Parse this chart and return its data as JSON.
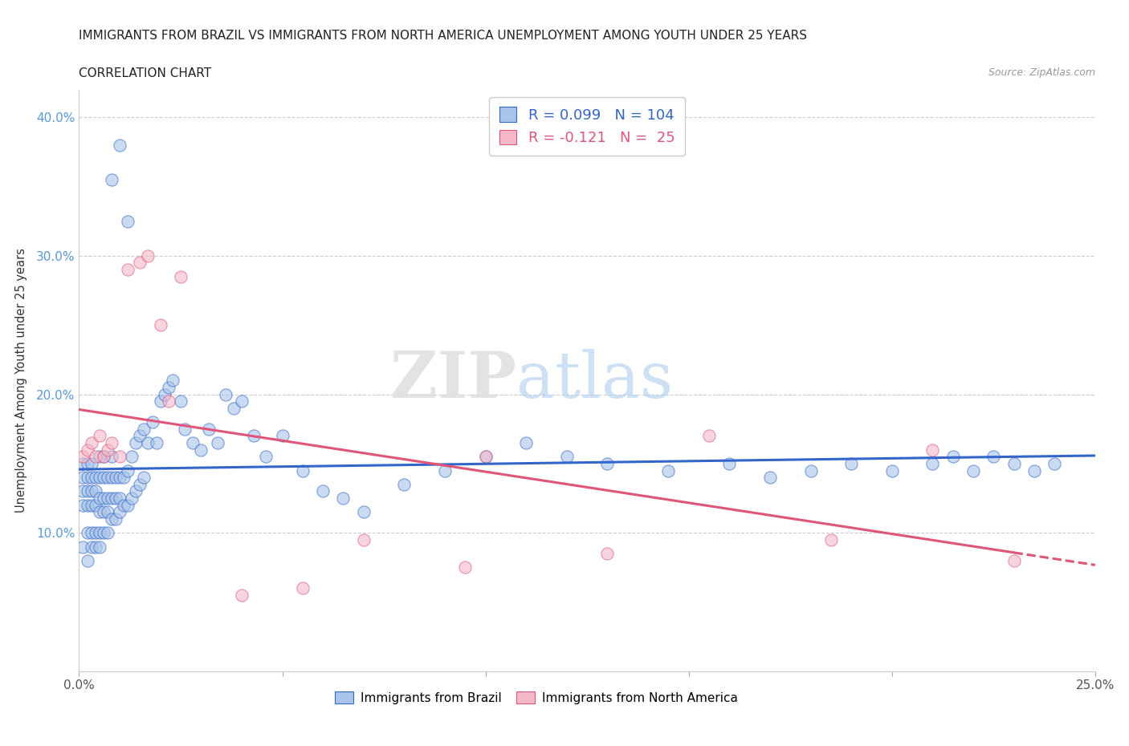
{
  "title_line1": "IMMIGRANTS FROM BRAZIL VS IMMIGRANTS FROM NORTH AMERICA UNEMPLOYMENT AMONG YOUTH UNDER 25 YEARS",
  "title_line2": "CORRELATION CHART",
  "source_text": "Source: ZipAtlas.com",
  "ylabel": "Unemployment Among Youth under 25 years",
  "xlim": [
    0.0,
    0.25
  ],
  "ylim": [
    0.0,
    0.42
  ],
  "brazil_color": "#a8c4e8",
  "na_color": "#f4b8c8",
  "brazil_line_color": "#3366cc",
  "na_line_color": "#e05578",
  "legend_brazil_R": "R = 0.099",
  "legend_brazil_N": "N = 104",
  "legend_na_R": "R = -0.121",
  "legend_na_N": "N =  25",
  "watermark_zip": "ZIP",
  "watermark_atlas": "atlas",
  "brazil_x": [
    0.001,
    0.001,
    0.001,
    0.001,
    0.001,
    0.002,
    0.002,
    0.002,
    0.002,
    0.002,
    0.002,
    0.003,
    0.003,
    0.003,
    0.003,
    0.003,
    0.003,
    0.004,
    0.004,
    0.004,
    0.004,
    0.004,
    0.005,
    0.005,
    0.005,
    0.005,
    0.005,
    0.005,
    0.006,
    0.006,
    0.006,
    0.006,
    0.006,
    0.007,
    0.007,
    0.007,
    0.007,
    0.008,
    0.008,
    0.008,
    0.008,
    0.009,
    0.009,
    0.009,
    0.01,
    0.01,
    0.01,
    0.011,
    0.011,
    0.012,
    0.012,
    0.013,
    0.013,
    0.014,
    0.014,
    0.015,
    0.015,
    0.016,
    0.016,
    0.017,
    0.018,
    0.019,
    0.02,
    0.021,
    0.022,
    0.023,
    0.025,
    0.026,
    0.028,
    0.03,
    0.032,
    0.034,
    0.036,
    0.038,
    0.04,
    0.043,
    0.046,
    0.05,
    0.055,
    0.06,
    0.065,
    0.07,
    0.08,
    0.09,
    0.1,
    0.11,
    0.12,
    0.13,
    0.145,
    0.16,
    0.17,
    0.18,
    0.19,
    0.2,
    0.21,
    0.215,
    0.22,
    0.225,
    0.23,
    0.235,
    0.24,
    0.01,
    0.008,
    0.012
  ],
  "brazil_y": [
    0.12,
    0.13,
    0.14,
    0.15,
    0.09,
    0.08,
    0.1,
    0.12,
    0.13,
    0.14,
    0.15,
    0.09,
    0.1,
    0.12,
    0.13,
    0.14,
    0.15,
    0.09,
    0.1,
    0.12,
    0.13,
    0.14,
    0.09,
    0.1,
    0.115,
    0.125,
    0.14,
    0.155,
    0.1,
    0.115,
    0.125,
    0.14,
    0.155,
    0.1,
    0.115,
    0.125,
    0.14,
    0.11,
    0.125,
    0.14,
    0.155,
    0.11,
    0.125,
    0.14,
    0.115,
    0.125,
    0.14,
    0.12,
    0.14,
    0.12,
    0.145,
    0.125,
    0.155,
    0.13,
    0.165,
    0.135,
    0.17,
    0.14,
    0.175,
    0.165,
    0.18,
    0.165,
    0.195,
    0.2,
    0.205,
    0.21,
    0.195,
    0.175,
    0.165,
    0.16,
    0.175,
    0.165,
    0.2,
    0.19,
    0.195,
    0.17,
    0.155,
    0.17,
    0.145,
    0.13,
    0.125,
    0.115,
    0.135,
    0.145,
    0.155,
    0.165,
    0.155,
    0.15,
    0.145,
    0.15,
    0.14,
    0.145,
    0.15,
    0.145,
    0.15,
    0.155,
    0.145,
    0.155,
    0.15,
    0.145,
    0.15,
    0.38,
    0.355,
    0.325
  ],
  "na_x": [
    0.001,
    0.002,
    0.003,
    0.004,
    0.005,
    0.006,
    0.007,
    0.008,
    0.01,
    0.012,
    0.015,
    0.017,
    0.02,
    0.022,
    0.025,
    0.04,
    0.055,
    0.07,
    0.095,
    0.1,
    0.13,
    0.155,
    0.185,
    0.21,
    0.23
  ],
  "na_y": [
    0.155,
    0.16,
    0.165,
    0.155,
    0.17,
    0.155,
    0.16,
    0.165,
    0.155,
    0.29,
    0.295,
    0.3,
    0.25,
    0.195,
    0.285,
    0.055,
    0.06,
    0.095,
    0.075,
    0.155,
    0.085,
    0.17,
    0.095,
    0.16,
    0.08
  ]
}
